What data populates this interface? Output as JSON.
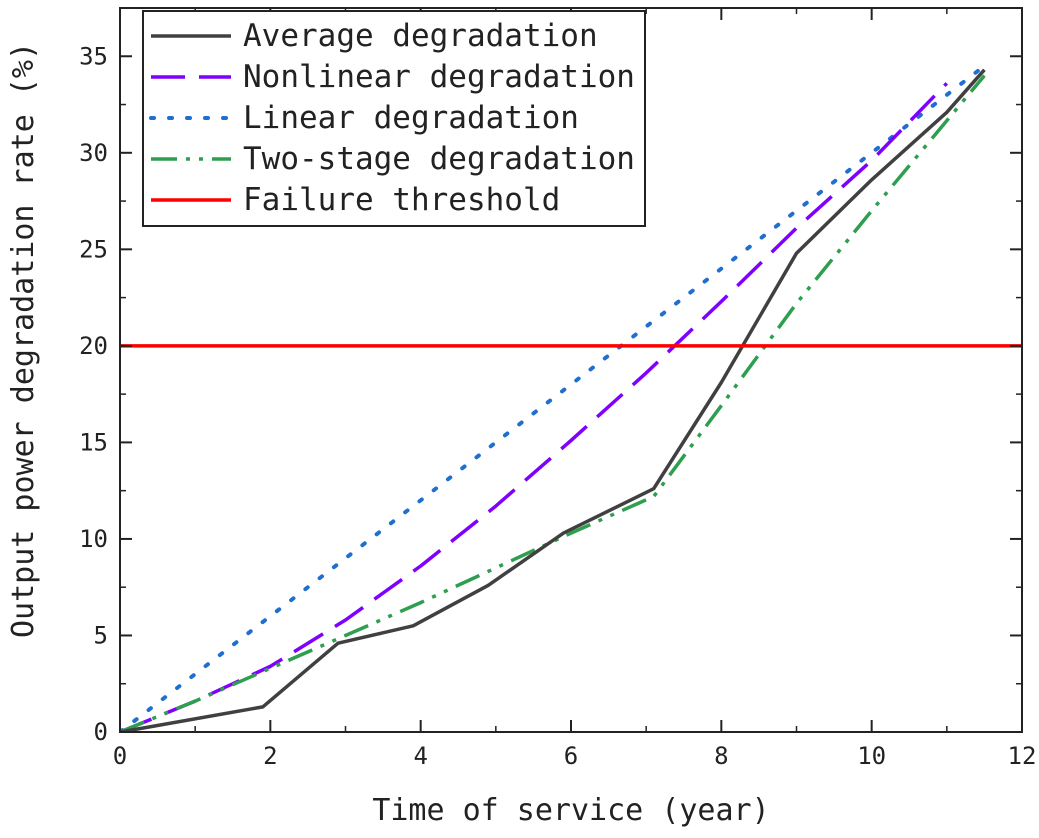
{
  "chart_data": {
    "type": "line",
    "title": "",
    "xlabel": "Time of service (year)",
    "ylabel": "Output power degradation rate (%)",
    "xlim": [
      0,
      12
    ],
    "ylim": [
      0,
      37.5
    ],
    "x_ticks": [
      0,
      2,
      4,
      6,
      8,
      10,
      12
    ],
    "y_ticks": [
      0,
      5,
      10,
      15,
      20,
      25,
      30,
      35
    ],
    "grid": false,
    "legend": "top-left",
    "series": [
      {
        "name": "Average degradation",
        "color": "#404040",
        "style": "solid",
        "x": [
          0,
          0.3,
          1.9,
          2.9,
          3.9,
          4.9,
          5.9,
          7.1,
          8.0,
          9.0,
          10.0,
          11.0,
          11.5
        ],
        "y": [
          0,
          0.2,
          1.3,
          4.6,
          5.5,
          7.6,
          10.3,
          12.6,
          18.1,
          24.8,
          28.6,
          32.1,
          34.3
        ]
      },
      {
        "name": "Nonlinear degradation",
        "color": "#7f00ff",
        "style": "dash",
        "x": [
          0,
          1,
          2,
          3,
          4,
          5,
          6,
          7,
          8,
          9,
          10,
          11
        ],
        "y": [
          0,
          1.6,
          3.4,
          5.8,
          8.6,
          11.7,
          15.1,
          18.6,
          22.3,
          26.1,
          29.6,
          33.6
        ]
      },
      {
        "name": "Linear degradation",
        "color": "#1f6fd1",
        "style": "dot",
        "x": [
          0,
          11.5
        ],
        "y": [
          0,
          34.5
        ]
      },
      {
        "name": "Two-stage degradation",
        "color": "#2e9e4f",
        "style": "dashdotdot",
        "x": [
          0,
          1,
          2,
          3,
          4,
          5,
          6,
          7.1,
          8,
          9,
          10,
          11.5
        ],
        "y": [
          0,
          1.6,
          3.3,
          5.0,
          6.7,
          8.5,
          10.3,
          12.2,
          16.9,
          22.2,
          27.0,
          34.0
        ]
      },
      {
        "name": "Failure threshold",
        "color": "#ff0000",
        "style": "solid",
        "x": [
          0,
          12
        ],
        "y": [
          20,
          20
        ]
      }
    ]
  }
}
